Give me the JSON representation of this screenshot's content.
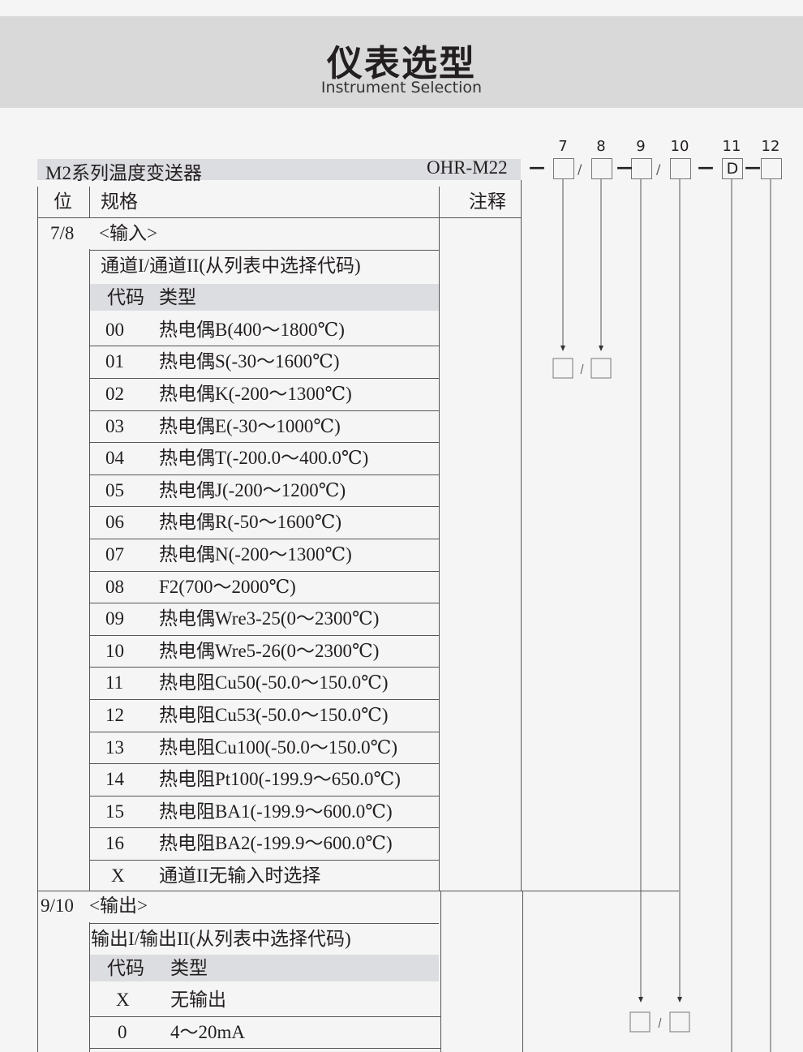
{
  "header": {
    "title": "仪表选型",
    "subtitle": "Instrument Selection"
  },
  "table": {
    "series_name": "M2系列温度变送器",
    "model": "OHR-M22",
    "col_position": "位",
    "col_spec": "规格",
    "col_note": "注释",
    "code_header": {
      "code": "代码",
      "type": "类型"
    },
    "input": {
      "position": "7/8",
      "label": "<输入>",
      "subtitle": "通道I/通道II(从列表中选择代码)",
      "rows": [
        {
          "code": "00",
          "type": "热电偶B(400～1800℃)"
        },
        {
          "code": "01",
          "type": "热电偶S(-30～1600℃)"
        },
        {
          "code": "02",
          "type": "热电偶K(-200～1300℃)"
        },
        {
          "code": "03",
          "type": "热电偶E(-30～1000℃)"
        },
        {
          "code": "04",
          "type": "热电偶T(-200.0～400.0℃)"
        },
        {
          "code": "05",
          "type": "热电偶J(-200～1200℃)"
        },
        {
          "code": "06",
          "type": "热电偶R(-50～1600℃)"
        },
        {
          "code": "07",
          "type": "热电偶N(-200～1300℃)"
        },
        {
          "code": "08",
          "type": "F2(700～2000℃)"
        },
        {
          "code": "09",
          "type": "热电偶Wre3-25(0～2300℃)"
        },
        {
          "code": "10",
          "type": "热电偶Wre5-26(0～2300℃)"
        },
        {
          "code": "11",
          "type": "热电阻Cu50(-50.0～150.0℃)"
        },
        {
          "code": "12",
          "type": "热电阻Cu53(-50.0～150.0℃)"
        },
        {
          "code": "13",
          "type": "热电阻Cu100(-50.0～150.0℃)"
        },
        {
          "code": "14",
          "type": "热电阻Pt100(-199.9～650.0℃)"
        },
        {
          "code": "15",
          "type": "热电阻BA1(-199.9～600.0℃)"
        },
        {
          "code": "16",
          "type": "热电阻BA2(-199.9～600.0℃)"
        },
        {
          "code": "X",
          "type": "通道II无输入时选择"
        }
      ]
    },
    "output": {
      "position": "9/10",
      "label": "<输出>",
      "subtitle": "输出I/输出II(从列表中选择代码)",
      "rows": [
        {
          "code": "X",
          "type": "无输出"
        },
        {
          "code": "0",
          "type": "4～20mA"
        }
      ]
    }
  },
  "code_diagram": {
    "positions": [
      "7",
      "8",
      "9",
      "10",
      "11",
      "12"
    ],
    "values": [
      "",
      "",
      "",
      "",
      "D",
      ""
    ],
    "separators": [
      "—",
      "/",
      "—",
      "/",
      "—",
      "—"
    ]
  }
}
